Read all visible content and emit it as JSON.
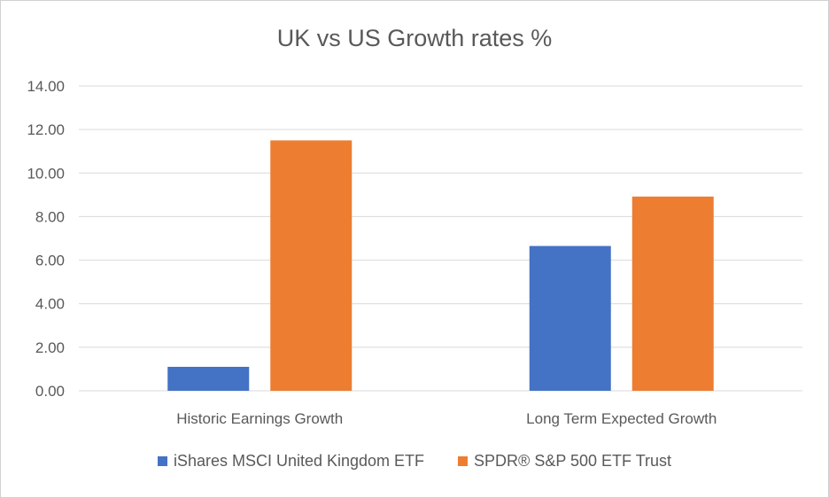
{
  "chart_data": {
    "type": "bar",
    "title": "UK vs US Growth rates %",
    "categories": [
      "Historic Earnings Growth",
      "Long Term Expected Growth"
    ],
    "series": [
      {
        "name": "iShares MSCI United Kingdom ETF",
        "values": [
          1.1,
          6.65
        ],
        "color": "#4472c4"
      },
      {
        "name": "SPDR® S&P 500 ETF Trust",
        "values": [
          11.5,
          8.92
        ],
        "color": "#ed7d31"
      }
    ],
    "yticks": [
      "0.00",
      "2.00",
      "4.00",
      "6.00",
      "8.00",
      "10.00",
      "12.00",
      "14.00"
    ],
    "ylim": [
      0,
      14
    ],
    "grid": true,
    "legend_position": "bottom"
  }
}
